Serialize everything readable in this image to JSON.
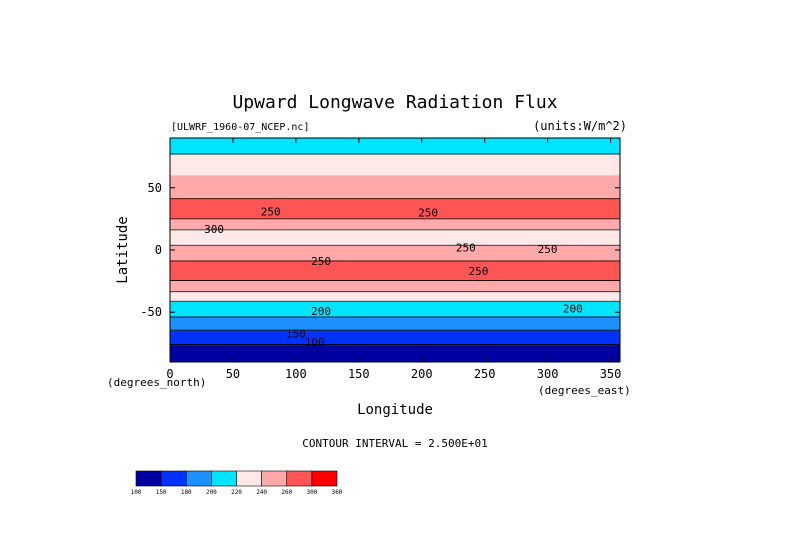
{
  "chart_data": {
    "type": "heatmap",
    "title": "Upward Longwave Radiation Flux",
    "file_label": "[ULWRF_1960-07_NCEP.nc]",
    "units_label": "(units:W/m^2)",
    "xlabel": "Longitude",
    "ylabel": "Latitude",
    "x_unit_label": "(degrees_east)",
    "y_unit_label": "(degrees_north)",
    "xlim": [
      0,
      357.5
    ],
    "ylim": [
      -90,
      90
    ],
    "x_ticks": [
      0,
      50,
      100,
      150,
      200,
      250,
      300,
      350
    ],
    "y_ticks": [
      50,
      0,
      -50
    ],
    "contour_interval_label": "CONTOUR INTERVAL = 2.500E+01",
    "contour_labels": [
      "300",
      "250",
      "250",
      "250",
      "250",
      "250",
      "250",
      "200",
      "200",
      "150",
      "100"
    ],
    "colorbar": {
      "levels": [
        "100",
        "150",
        "180",
        "200",
        "220",
        "240",
        "260",
        "300",
        "360"
      ],
      "colors": [
        "#0000a0",
        "#0033ff",
        "#1e90ff",
        "#00e5ff",
        "#ffe8e8",
        "#ffaaaa",
        "#ff5555",
        "#ff0000"
      ]
    },
    "zonal_profile": [
      {
        "lat": 90,
        "value": 215
      },
      {
        "lat": 80,
        "value": 218
      },
      {
        "lat": 70,
        "value": 225
      },
      {
        "lat": 60,
        "value": 240
      },
      {
        "lat": 50,
        "value": 245
      },
      {
        "lat": 40,
        "value": 262
      },
      {
        "lat": 30,
        "value": 275
      },
      {
        "lat": 20,
        "value": 245
      },
      {
        "lat": 10,
        "value": 232
      },
      {
        "lat": 0,
        "value": 245
      },
      {
        "lat": -10,
        "value": 262
      },
      {
        "lat": -20,
        "value": 268
      },
      {
        "lat": -30,
        "value": 250
      },
      {
        "lat": -40,
        "value": 222
      },
      {
        "lat": -50,
        "value": 205
      },
      {
        "lat": -60,
        "value": 192
      },
      {
        "lat": -70,
        "value": 165
      },
      {
        "lat": -80,
        "value": 140
      },
      {
        "lat": -90,
        "value": 130
      }
    ]
  }
}
